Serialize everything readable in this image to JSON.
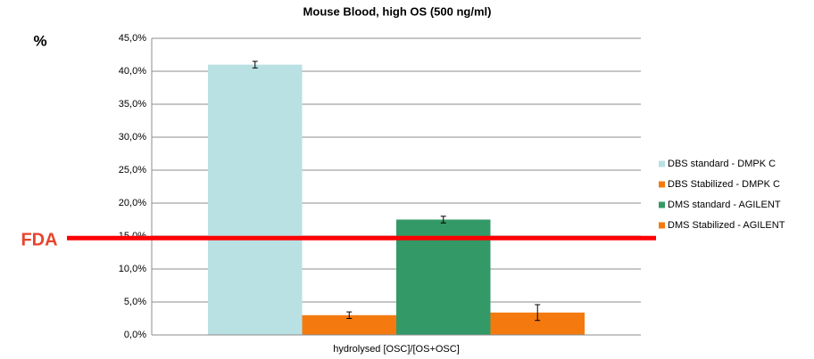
{
  "chart_data": {
    "type": "bar",
    "title": "Mouse Blood, high OS (500 ng/ml)",
    "y_label": "%",
    "categories": [
      "hydrolysed [OSC]/[OS+OSC]"
    ],
    "series": [
      {
        "name": "DBS standard - DMPK C",
        "color": "#b9e0e3",
        "values": [
          41.0
        ],
        "errors": [
          0.5
        ]
      },
      {
        "name": "DBS Stabilized - DMPK C",
        "color": "#f47a10",
        "values": [
          3.0
        ],
        "errors": [
          0.5
        ]
      },
      {
        "name": "DMS standard - AGILENT",
        "color": "#339966",
        "values": [
          17.5
        ],
        "errors": [
          0.5
        ]
      },
      {
        "name": "DMS Stabilized - AGILENT",
        "color": "#f47a10",
        "values": [
          3.4
        ],
        "errors": [
          1.2
        ]
      }
    ],
    "ylim": [
      0,
      45
    ],
    "yticks": [
      {
        "value": 0,
        "label": "0,0%"
      },
      {
        "value": 5,
        "label": "5,0%"
      },
      {
        "value": 10,
        "label": "10,0%"
      },
      {
        "value": 15,
        "label": "15,0%"
      },
      {
        "value": 20,
        "label": "20,0%"
      },
      {
        "value": 25,
        "label": "25,0%"
      },
      {
        "value": 30,
        "label": "30,0%"
      },
      {
        "value": 35,
        "label": "35,0%"
      },
      {
        "value": 40,
        "label": "40,0%"
      },
      {
        "value": 45,
        "label": "45,0%"
      }
    ],
    "grid": true,
    "legend": "right",
    "threshold": {
      "label": "FDA",
      "value": 14.7,
      "color": "#ff0000"
    }
  }
}
